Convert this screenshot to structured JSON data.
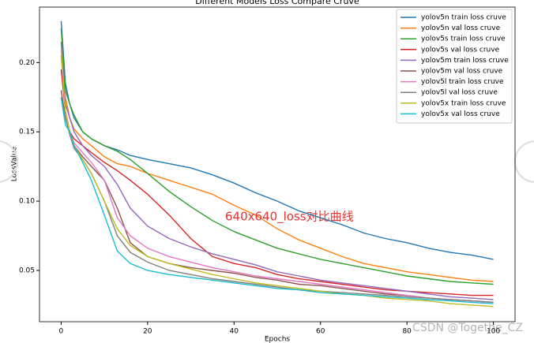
{
  "chart_data": {
    "type": "line",
    "title": "Different Models Loss Compare Cruve",
    "x_label": "Epochs",
    "y_label": "LossValue",
    "annotation": "640x640_loss对比曲线",
    "x": [
      0,
      1,
      2,
      3,
      5,
      7,
      10,
      13,
      16,
      20,
      25,
      30,
      35,
      40,
      45,
      50,
      55,
      60,
      65,
      70,
      75,
      80,
      85,
      90,
      95,
      100
    ],
    "series": [
      {
        "name": "yolov5n train loss cruve",
        "color": "#1f77b4",
        "values": [
          0.23,
          0.185,
          0.17,
          0.16,
          0.15,
          0.145,
          0.14,
          0.137,
          0.133,
          0.13,
          0.127,
          0.124,
          0.119,
          0.113,
          0.106,
          0.1,
          0.093,
          0.088,
          0.083,
          0.077,
          0.073,
          0.07,
          0.066,
          0.063,
          0.061,
          0.058
        ]
      },
      {
        "name": "yolov5n val loss cruve",
        "color": "#ff7f0e",
        "values": [
          0.205,
          0.175,
          0.16,
          0.152,
          0.145,
          0.14,
          0.132,
          0.127,
          0.125,
          0.12,
          0.115,
          0.11,
          0.105,
          0.097,
          0.09,
          0.08,
          0.072,
          0.066,
          0.06,
          0.055,
          0.052,
          0.049,
          0.047,
          0.045,
          0.043,
          0.042
        ]
      },
      {
        "name": "yolov5s train loss cruve",
        "color": "#2ca02c",
        "values": [
          0.225,
          0.18,
          0.17,
          0.162,
          0.15,
          0.145,
          0.14,
          0.136,
          0.13,
          0.12,
          0.107,
          0.096,
          0.086,
          0.078,
          0.072,
          0.066,
          0.062,
          0.058,
          0.055,
          0.052,
          0.049,
          0.046,
          0.044,
          0.042,
          0.041,
          0.04
        ]
      },
      {
        "name": "yolov5s val loss cruve",
        "color": "#d62728",
        "values": [
          0.195,
          0.165,
          0.15,
          0.145,
          0.14,
          0.135,
          0.128,
          0.122,
          0.115,
          0.105,
          0.09,
          0.073,
          0.06,
          0.055,
          0.052,
          0.047,
          0.044,
          0.042,
          0.04,
          0.038,
          0.036,
          0.035,
          0.034,
          0.033,
          0.032,
          0.032
        ]
      },
      {
        "name": "yolov5m train loss cruve",
        "color": "#9467bd",
        "values": [
          0.215,
          0.17,
          0.16,
          0.15,
          0.14,
          0.133,
          0.125,
          0.112,
          0.095,
          0.082,
          0.073,
          0.067,
          0.062,
          0.058,
          0.054,
          0.049,
          0.046,
          0.043,
          0.041,
          0.039,
          0.037,
          0.035,
          0.033,
          0.031,
          0.03,
          0.029
        ]
      },
      {
        "name": "yolov5m val loss cruve",
        "color": "#8c564b",
        "values": [
          0.18,
          0.16,
          0.15,
          0.14,
          0.132,
          0.125,
          0.115,
          0.095,
          0.07,
          0.06,
          0.055,
          0.052,
          0.05,
          0.048,
          0.045,
          0.043,
          0.04,
          0.039,
          0.037,
          0.035,
          0.033,
          0.032,
          0.03,
          0.029,
          0.028,
          0.027
        ]
      },
      {
        "name": "yolov5l train loss cruve",
        "color": "#e377c2",
        "values": [
          0.205,
          0.165,
          0.15,
          0.142,
          0.135,
          0.128,
          0.115,
          0.088,
          0.075,
          0.066,
          0.06,
          0.056,
          0.052,
          0.049,
          0.046,
          0.044,
          0.042,
          0.04,
          0.038,
          0.036,
          0.034,
          0.032,
          0.03,
          0.029,
          0.028,
          0.027
        ]
      },
      {
        "name": "yolov5l val loss cruve",
        "color": "#7f7f7f",
        "values": [
          0.175,
          0.16,
          0.148,
          0.138,
          0.13,
          0.12,
          0.1,
          0.075,
          0.063,
          0.056,
          0.05,
          0.047,
          0.044,
          0.042,
          0.04,
          0.038,
          0.036,
          0.035,
          0.034,
          0.033,
          0.032,
          0.031,
          0.03,
          0.029,
          0.028,
          0.027
        ]
      },
      {
        "name": "yolov5x train loss cruve",
        "color": "#bcbd22",
        "values": [
          0.21,
          0.165,
          0.15,
          0.14,
          0.13,
          0.12,
          0.1,
          0.08,
          0.068,
          0.06,
          0.055,
          0.051,
          0.047,
          0.044,
          0.041,
          0.039,
          0.037,
          0.035,
          0.033,
          0.032,
          0.03,
          0.029,
          0.028,
          0.026,
          0.025,
          0.024
        ]
      },
      {
        "name": "yolov5x val loss cruve",
        "color": "#17becf",
        "values": [
          0.175,
          0.155,
          0.15,
          0.14,
          0.128,
          0.115,
          0.09,
          0.064,
          0.055,
          0.05,
          0.047,
          0.045,
          0.043,
          0.041,
          0.039,
          0.037,
          0.036,
          0.034,
          0.033,
          0.032,
          0.031,
          0.03,
          0.029,
          0.028,
          0.027,
          0.026
        ]
      }
    ],
    "xlim": [
      -5,
      105
    ],
    "ylim": [
      0.013,
      0.24
    ],
    "xticks": [
      0,
      20,
      40,
      60,
      80,
      100
    ],
    "yticks": [
      0.05,
      {
        "value": 0.1,
        "label": "0.10"
      },
      0.15,
      {
        "value": 0.2,
        "label": "0.20"
      }
    ],
    "grid": false,
    "legend": "upper-right"
  },
  "watermark": "CSDN @Togethe_CZ"
}
